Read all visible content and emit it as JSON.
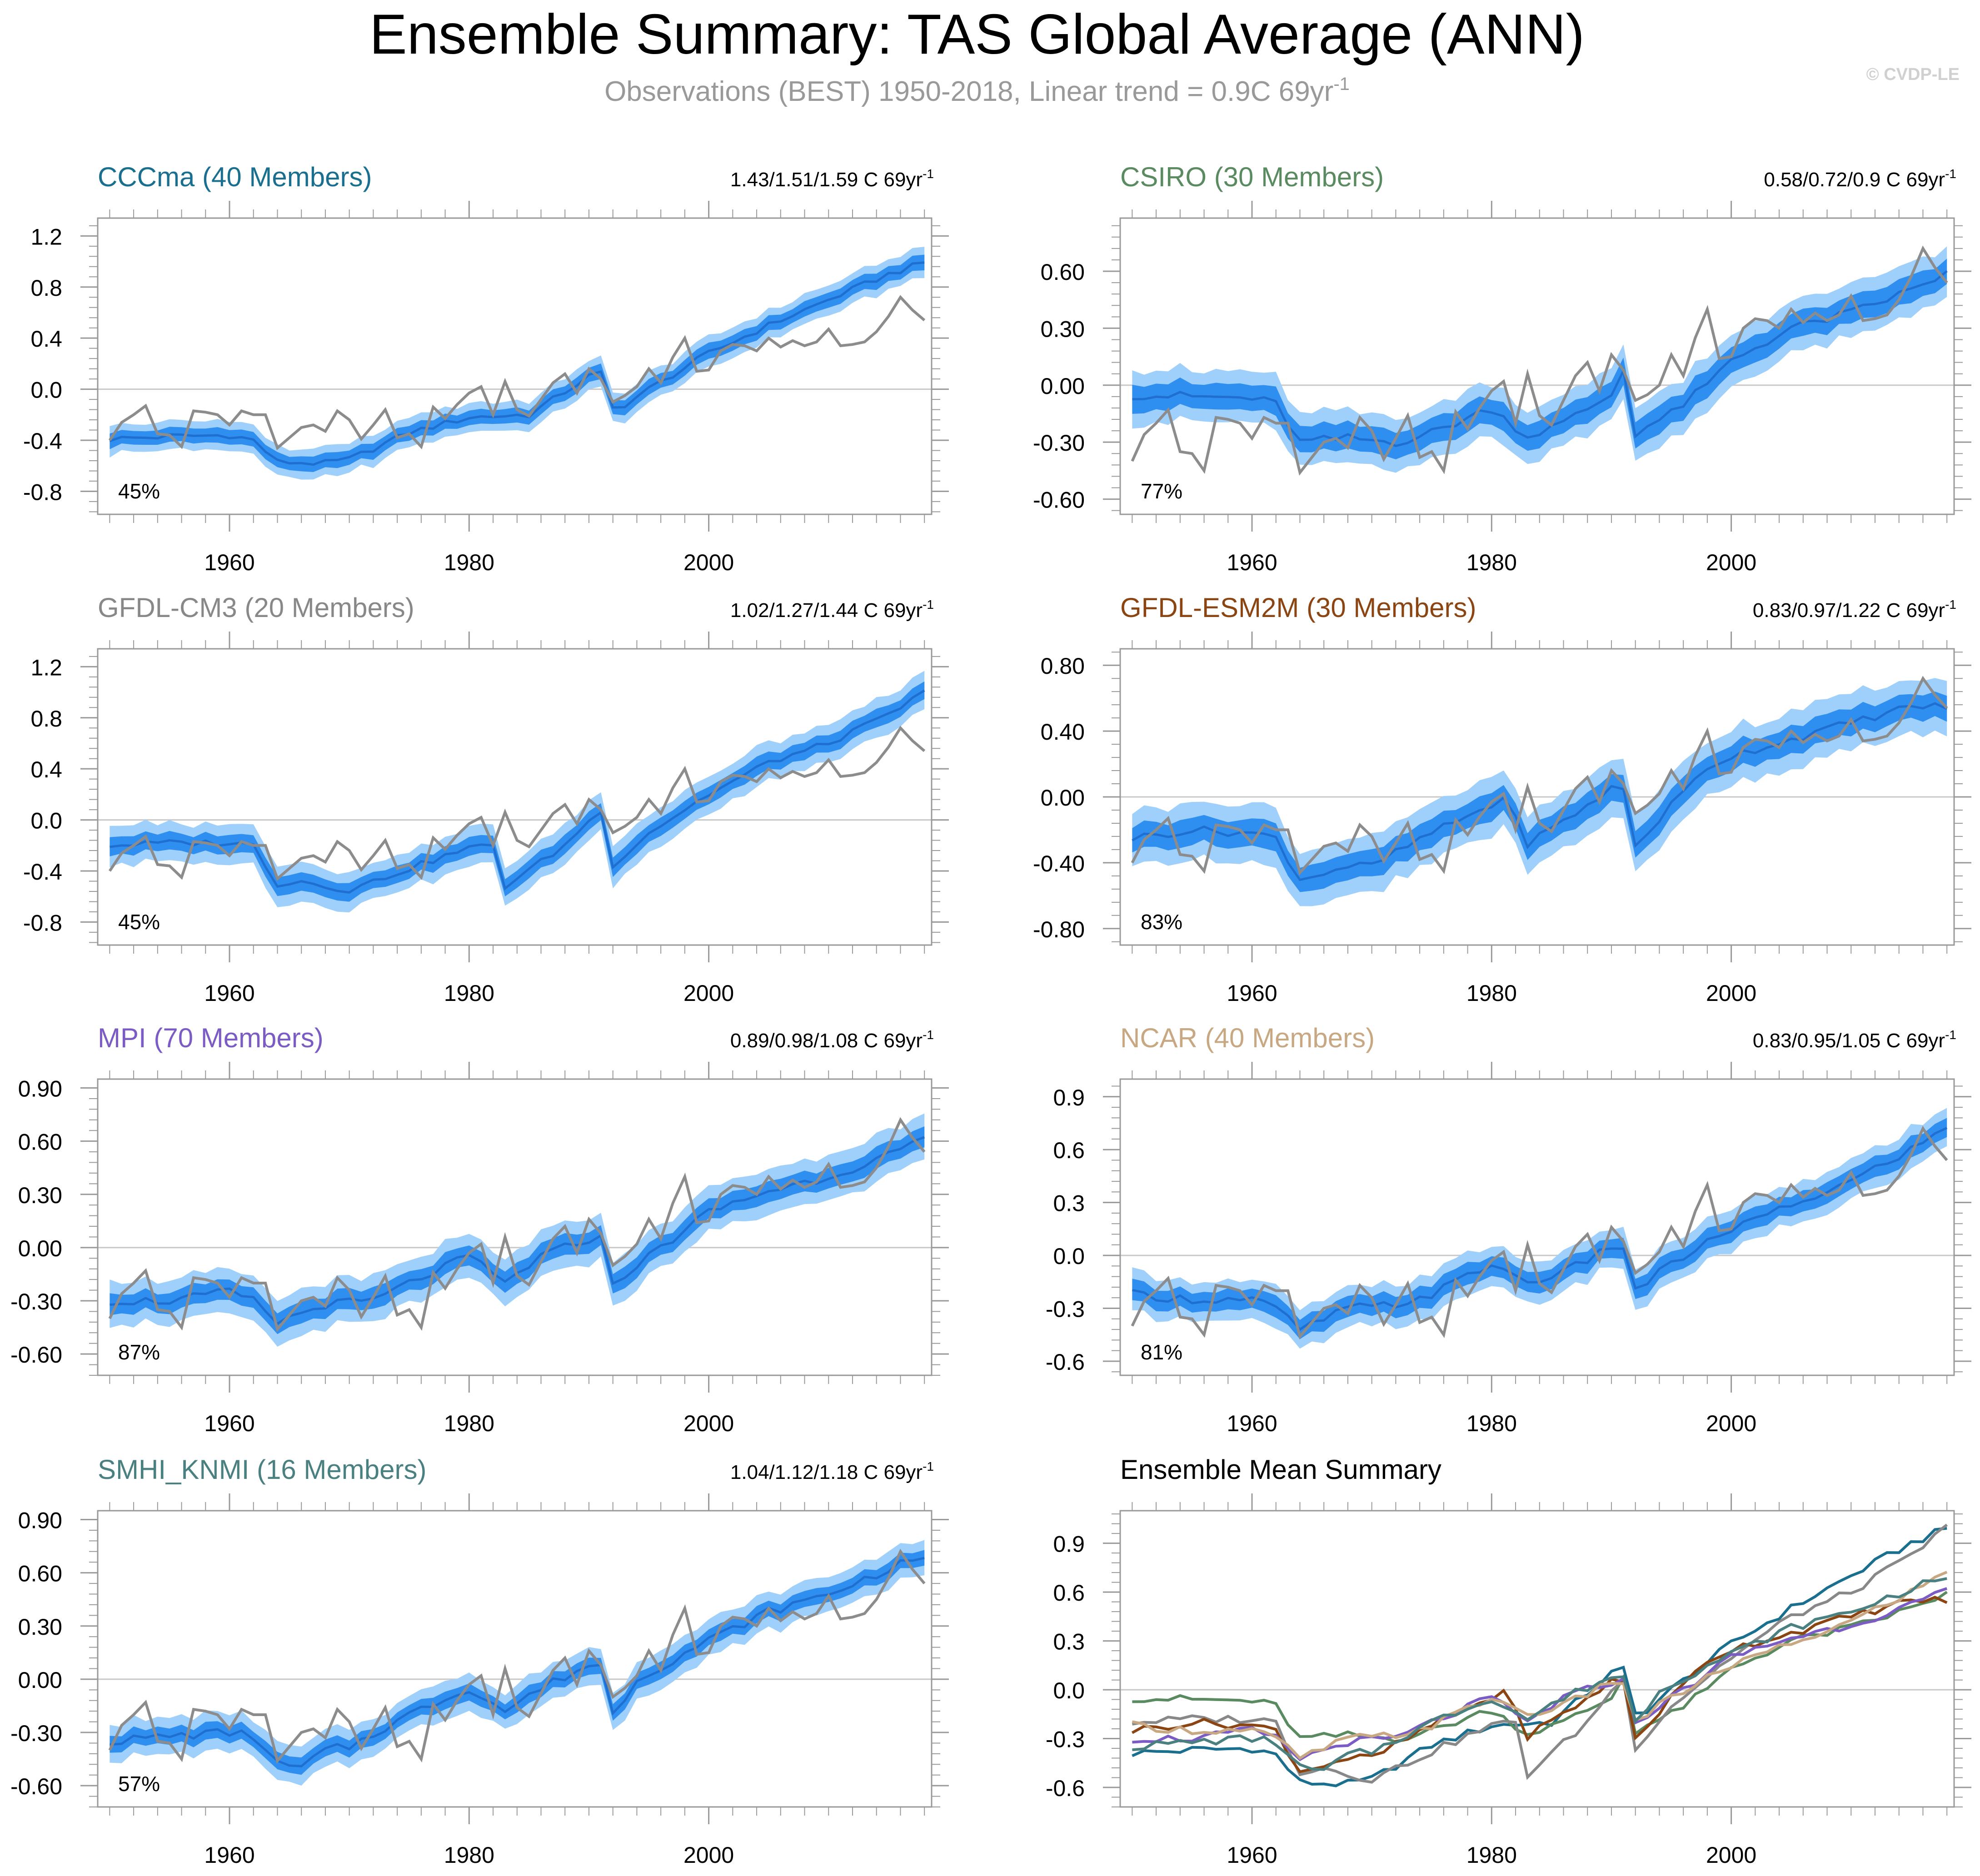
{
  "figure": {
    "title": "Ensemble Summary: TAS Global Average (ANN)",
    "subtitle_main": "Observations (BEST) 1950-2018, Linear trend = 0.9C 69yr",
    "subtitle_sup": "-1",
    "watermark": "© CVDP-LE",
    "colors": {
      "band_outer": "#9fd0fb",
      "band_inner": "#2f8ff0",
      "mean_line": "#1f6fd0",
      "obs_line": "#8c8c8c",
      "axis": "#999999",
      "zero_line": "#c8c8c8"
    }
  },
  "chart_data": [
    {
      "type": "line",
      "title": "CCCma (40 Members)",
      "title_color": "#1a6f8f",
      "trend_label": "1.43/1.51/1.59 C 69yr",
      "trend_sup": "-1",
      "percent_label": "45%",
      "x_range": [
        1950,
        2018
      ],
      "ylim": [
        -0.98,
        1.34
      ],
      "yticks": [
        -0.8,
        -0.4,
        0.0,
        0.4,
        0.8,
        1.2
      ],
      "ytick_labels": [
        "-0.8",
        "-0.4",
        "0.0",
        "0.4",
        "0.8",
        "1.2"
      ],
      "xticks": [
        1960,
        1980,
        2000
      ],
      "xtick_labels": [
        "1960",
        "1980",
        "2000"
      ],
      "ensemble_mean_key": [
        [
          1950,
          -0.39
        ],
        [
          1955,
          -0.37
        ],
        [
          1960,
          -0.36
        ],
        [
          1962,
          -0.4
        ],
        [
          1964,
          -0.57
        ],
        [
          1968,
          -0.58
        ],
        [
          1970,
          -0.55
        ],
        [
          1975,
          -0.34
        ],
        [
          1980,
          -0.22
        ],
        [
          1985,
          -0.2
        ],
        [
          1990,
          0.1
        ],
        [
          1991,
          0.12
        ],
        [
          1992,
          -0.15
        ],
        [
          1993,
          -0.12
        ],
        [
          1995,
          0.0
        ],
        [
          2000,
          0.28
        ],
        [
          2005,
          0.5
        ],
        [
          2010,
          0.7
        ],
        [
          2015,
          0.9
        ],
        [
          2018,
          0.99
        ]
      ],
      "inner_halfwidth": 0.05,
      "outer_halfwidth": 0.1,
      "obs_key": "global",
      "obs_values": null
    },
    {
      "type": "line",
      "title": "CSIRO (30 Members)",
      "title_color": "#5a8a5f",
      "trend_label": "0.58/0.72/0.9 C 69yr",
      "trend_sup": "-1",
      "percent_label": "77%",
      "x_range": [
        1950,
        2018
      ],
      "ylim": [
        -0.68,
        0.88
      ],
      "yticks": [
        -0.6,
        -0.3,
        0.0,
        0.3,
        0.6
      ],
      "ytick_labels": [
        "-0.60",
        "-0.30",
        "0.00",
        "0.30",
        "0.60"
      ],
      "xticks": [
        1960,
        1980,
        2000
      ],
      "xtick_labels": [
        "1960",
        "1980",
        "2000"
      ],
      "ensemble_mean_key": [
        [
          1950,
          -0.05
        ],
        [
          1955,
          -0.06
        ],
        [
          1960,
          -0.07
        ],
        [
          1962,
          -0.1
        ],
        [
          1964,
          -0.3
        ],
        [
          1968,
          -0.28
        ],
        [
          1972,
          -0.3
        ],
        [
          1975,
          -0.25
        ],
        [
          1980,
          -0.12
        ],
        [
          1983,
          -0.27
        ],
        [
          1986,
          -0.2
        ],
        [
          1990,
          -0.05
        ],
        [
          1991,
          0.08
        ],
        [
          1992,
          -0.25
        ],
        [
          1995,
          -0.15
        ],
        [
          1998,
          0.0
        ],
        [
          2000,
          0.13
        ],
        [
          2005,
          0.3
        ],
        [
          2010,
          0.38
        ],
        [
          2015,
          0.5
        ],
        [
          2018,
          0.59
        ]
      ],
      "inner_halfwidth": 0.06,
      "outer_halfwidth": 0.12,
      "obs_key": "csiro",
      "obs_values": null
    },
    {
      "type": "line",
      "title": "GFDL-CM3 (20 Members)",
      "title_color": "#888888",
      "trend_label": "1.02/1.27/1.44 C 69yr",
      "trend_sup": "-1",
      "percent_label": "45%",
      "x_range": [
        1950,
        2018
      ],
      "ylim": [
        -0.98,
        1.34
      ],
      "yticks": [
        -0.8,
        -0.4,
        0.0,
        0.4,
        0.8,
        1.2
      ],
      "ytick_labels": [
        "-0.8",
        "-0.4",
        "0.0",
        "0.4",
        "0.8",
        "1.2"
      ],
      "xticks": [
        1960,
        1980,
        2000
      ],
      "xtick_labels": [
        "1960",
        "1980",
        "2000"
      ],
      "ensemble_mean_key": [
        [
          1950,
          -0.2
        ],
        [
          1955,
          -0.18
        ],
        [
          1960,
          -0.18
        ],
        [
          1962,
          -0.2
        ],
        [
          1964,
          -0.5
        ],
        [
          1966,
          -0.48
        ],
        [
          1970,
          -0.55
        ],
        [
          1975,
          -0.38
        ],
        [
          1980,
          -0.22
        ],
        [
          1982,
          -0.2
        ],
        [
          1983,
          -0.52
        ],
        [
          1988,
          -0.2
        ],
        [
          1990,
          0.0
        ],
        [
          1991,
          0.05
        ],
        [
          1992,
          -0.35
        ],
        [
          1995,
          -0.1
        ],
        [
          2000,
          0.2
        ],
        [
          2005,
          0.45
        ],
        [
          2010,
          0.6
        ],
        [
          2015,
          0.82
        ],
        [
          2018,
          1.0
        ]
      ],
      "inner_halfwidth": 0.06,
      "outer_halfwidth": 0.13,
      "obs_key": "global",
      "obs_values": null
    },
    {
      "type": "line",
      "title": "GFDL-ESM2M (30 Members)",
      "title_color": "#8b4513",
      "trend_label": "0.83/0.97/1.22 C 69yr",
      "trend_sup": "-1",
      "percent_label": "83%",
      "x_range": [
        1950,
        2018
      ],
      "ylim": [
        -0.9,
        0.9
      ],
      "yticks": [
        -0.8,
        -0.4,
        0.0,
        0.4,
        0.8
      ],
      "ytick_labels": [
        "-0.80",
        "-0.40",
        "0.00",
        "0.40",
        "0.80"
      ],
      "xticks": [
        1960,
        1980,
        2000
      ],
      "xtick_labels": [
        "1960",
        "1980",
        "2000"
      ],
      "ensemble_mean_key": [
        [
          1950,
          -0.25
        ],
        [
          1955,
          -0.2
        ],
        [
          1960,
          -0.22
        ],
        [
          1962,
          -0.25
        ],
        [
          1964,
          -0.5
        ],
        [
          1968,
          -0.42
        ],
        [
          1970,
          -0.42
        ],
        [
          1975,
          -0.22
        ],
        [
          1980,
          -0.05
        ],
        [
          1981,
          0.0
        ],
        [
          1983,
          -0.28
        ],
        [
          1986,
          -0.15
        ],
        [
          1990,
          0.05
        ],
        [
          1991,
          0.05
        ],
        [
          1992,
          -0.3
        ],
        [
          1995,
          -0.05
        ],
        [
          1998,
          0.18
        ],
        [
          2000,
          0.25
        ],
        [
          2005,
          0.35
        ],
        [
          2010,
          0.45
        ],
        [
          2015,
          0.55
        ],
        [
          2018,
          0.55
        ]
      ],
      "inner_halfwidth": 0.07,
      "outer_halfwidth": 0.15,
      "obs_key": "global",
      "obs_values": null
    },
    {
      "type": "line",
      "title": "MPI (70 Members)",
      "title_color": "#7a5cc4",
      "trend_label": "0.89/0.98/1.08 C 69yr",
      "trend_sup": "-1",
      "percent_label": "87%",
      "x_range": [
        1950,
        2018
      ],
      "ylim": [
        -0.72,
        0.95
      ],
      "yticks": [
        -0.6,
        -0.3,
        0.0,
        0.3,
        0.6,
        0.9
      ],
      "ytick_labels": [
        "-0.60",
        "-0.30",
        "0.00",
        "0.30",
        "0.60",
        "0.90"
      ],
      "xticks": [
        1960,
        1980,
        2000
      ],
      "xtick_labels": [
        "1960",
        "1980",
        "2000"
      ],
      "ensemble_mean_key": [
        [
          1950,
          -0.3
        ],
        [
          1955,
          -0.3
        ],
        [
          1960,
          -0.25
        ],
        [
          1962,
          -0.3
        ],
        [
          1964,
          -0.42
        ],
        [
          1968,
          -0.32
        ],
        [
          1972,
          -0.3
        ],
        [
          1975,
          -0.2
        ],
        [
          1980,
          -0.05
        ],
        [
          1983,
          -0.2
        ],
        [
          1986,
          -0.05
        ],
        [
          1990,
          0.05
        ],
        [
          1991,
          0.05
        ],
        [
          1992,
          -0.2
        ],
        [
          1995,
          -0.05
        ],
        [
          2000,
          0.2
        ],
        [
          2005,
          0.32
        ],
        [
          2010,
          0.4
        ],
        [
          2015,
          0.52
        ],
        [
          2018,
          0.6
        ]
      ],
      "inner_halfwidth": 0.05,
      "outer_halfwidth": 0.11,
      "obs_key": "global",
      "obs_values": null
    },
    {
      "type": "line",
      "title": "NCAR (40 Members)",
      "title_color": "#c8a882",
      "trend_label": "0.83/0.95/1.05 C 69yr",
      "trend_sup": "-1",
      "percent_label": "81%",
      "x_range": [
        1950,
        2018
      ],
      "ylim": [
        -0.68,
        1.0
      ],
      "yticks": [
        -0.6,
        -0.3,
        0.0,
        0.3,
        0.6,
        0.9
      ],
      "ytick_labels": [
        "-0.6",
        "-0.3",
        "0.0",
        "0.3",
        "0.6",
        "0.9"
      ],
      "xticks": [
        1960,
        1980,
        2000
      ],
      "xtick_labels": [
        "1960",
        "1980",
        "2000"
      ],
      "ensemble_mean_key": [
        [
          1950,
          -0.22
        ],
        [
          1955,
          -0.25
        ],
        [
          1960,
          -0.25
        ],
        [
          1962,
          -0.3
        ],
        [
          1964,
          -0.42
        ],
        [
          1968,
          -0.3
        ],
        [
          1972,
          -0.28
        ],
        [
          1975,
          -0.22
        ],
        [
          1980,
          -0.05
        ],
        [
          1983,
          -0.15
        ],
        [
          1986,
          -0.1
        ],
        [
          1990,
          0.05
        ],
        [
          1991,
          0.05
        ],
        [
          1992,
          -0.2
        ],
        [
          1995,
          -0.05
        ],
        [
          2000,
          0.15
        ],
        [
          2005,
          0.28
        ],
        [
          2010,
          0.42
        ],
        [
          2015,
          0.6
        ],
        [
          2018,
          0.72
        ]
      ],
      "inner_halfwidth": 0.05,
      "outer_halfwidth": 0.1,
      "obs_key": "global",
      "obs_values": null
    },
    {
      "type": "line",
      "title": "SMHI_KNMI (16 Members)",
      "title_color": "#4a8080",
      "trend_label": "1.04/1.12/1.18 C 69yr",
      "trend_sup": "-1",
      "percent_label": "57%",
      "x_range": [
        1950,
        2018
      ],
      "ylim": [
        -0.72,
        0.95
      ],
      "yticks": [
        -0.6,
        -0.3,
        0.0,
        0.3,
        0.6,
        0.9
      ],
      "ytick_labels": [
        "-0.60",
        "-0.30",
        "0.00",
        "0.30",
        "0.60",
        "0.90"
      ],
      "xticks": [
        1960,
        1980,
        2000
      ],
      "xtick_labels": [
        "1960",
        "1980",
        "2000"
      ],
      "ensemble_mean_key": [
        [
          1950,
          -0.35
        ],
        [
          1955,
          -0.32
        ],
        [
          1960,
          -0.3
        ],
        [
          1962,
          -0.32
        ],
        [
          1964,
          -0.48
        ],
        [
          1966,
          -0.5
        ],
        [
          1968,
          -0.4
        ],
        [
          1970,
          -0.38
        ],
        [
          1975,
          -0.2
        ],
        [
          1980,
          -0.05
        ],
        [
          1983,
          -0.18
        ],
        [
          1986,
          -0.05
        ],
        [
          1990,
          0.08
        ],
        [
          1991,
          0.08
        ],
        [
          1992,
          -0.2
        ],
        [
          1994,
          0.0
        ],
        [
          2000,
          0.22
        ],
        [
          2005,
          0.38
        ],
        [
          2010,
          0.48
        ],
        [
          2015,
          0.62
        ],
        [
          2018,
          0.7
        ]
      ],
      "inner_halfwidth": 0.04,
      "outer_halfwidth": 0.09,
      "obs_key": "global",
      "obs_values": null
    },
    {
      "type": "line",
      "title": "Ensemble Mean Summary",
      "title_color": "#000000",
      "trend_label": "",
      "trend_sup": "",
      "percent_label": "",
      "x_range": [
        1950,
        2018
      ],
      "ylim": [
        -0.72,
        1.1
      ],
      "yticks": [
        -0.6,
        -0.3,
        0.0,
        0.3,
        0.6,
        0.9
      ],
      "ytick_labels": [
        "-0.6",
        "-0.3",
        "0.0",
        "0.3",
        "0.6",
        "0.9"
      ],
      "xticks": [
        1960,
        1980,
        2000
      ],
      "xtick_labels": [
        "1960",
        "1980",
        "2000"
      ],
      "summary_series": [
        {
          "color": "#1a6f8f",
          "ref": 0
        },
        {
          "color": "#5a8a5f",
          "ref": 1
        },
        {
          "color": "#888888",
          "ref": 2
        },
        {
          "color": "#8b4513",
          "ref": 3
        },
        {
          "color": "#7a5cc4",
          "ref": 4
        },
        {
          "color": "#c8a882",
          "ref": 5
        },
        {
          "color": "#4a8080",
          "ref": 6
        }
      ]
    }
  ],
  "obs_series": {
    "years_start": 1950,
    "global": [
      -0.4,
      -0.26,
      -0.2,
      -0.13,
      -0.35,
      -0.36,
      -0.45,
      -0.17,
      -0.18,
      -0.2,
      -0.28,
      -0.17,
      -0.2,
      -0.2,
      -0.46,
      -0.38,
      -0.3,
      -0.28,
      -0.33,
      -0.17,
      -0.24,
      -0.39,
      -0.28,
      -0.16,
      -0.38,
      -0.35,
      -0.45,
      -0.14,
      -0.23,
      -0.12,
      -0.03,
      0.02,
      -0.2,
      0.06,
      -0.16,
      -0.21,
      -0.08,
      0.05,
      0.12,
      -0.03,
      0.16,
      0.08,
      -0.1,
      -0.05,
      0.02,
      0.16,
      0.05,
      0.25,
      0.4,
      0.14,
      0.15,
      0.3,
      0.35,
      0.34,
      0.3,
      0.4,
      0.33,
      0.38,
      0.34,
      0.37,
      0.47,
      0.34,
      0.35,
      0.37,
      0.45,
      0.57,
      0.72,
      0.62,
      0.54
    ],
    "csiro": [
      -0.4,
      -0.26,
      -0.2,
      -0.13,
      -0.35,
      -0.36,
      -0.45,
      -0.17,
      -0.18,
      -0.2,
      -0.28,
      -0.17,
      -0.2,
      -0.2,
      -0.46,
      -0.38,
      -0.3,
      -0.28,
      -0.33,
      -0.17,
      -0.24,
      -0.39,
      -0.28,
      -0.16,
      -0.38,
      -0.35,
      -0.45,
      -0.14,
      -0.23,
      -0.12,
      -0.03,
      0.02,
      -0.2,
      0.06,
      -0.16,
      -0.21,
      -0.08,
      0.05,
      0.12,
      -0.03,
      0.16,
      0.08,
      -0.08,
      -0.05,
      0.0,
      0.16,
      0.05,
      0.25,
      0.4,
      0.14,
      0.15,
      0.3,
      0.35,
      0.34,
      0.3,
      0.4,
      0.33,
      0.38,
      0.34,
      0.37,
      0.47,
      0.34,
      0.35,
      0.37,
      0.45,
      0.57,
      0.72,
      0.62,
      0.54
    ]
  }
}
